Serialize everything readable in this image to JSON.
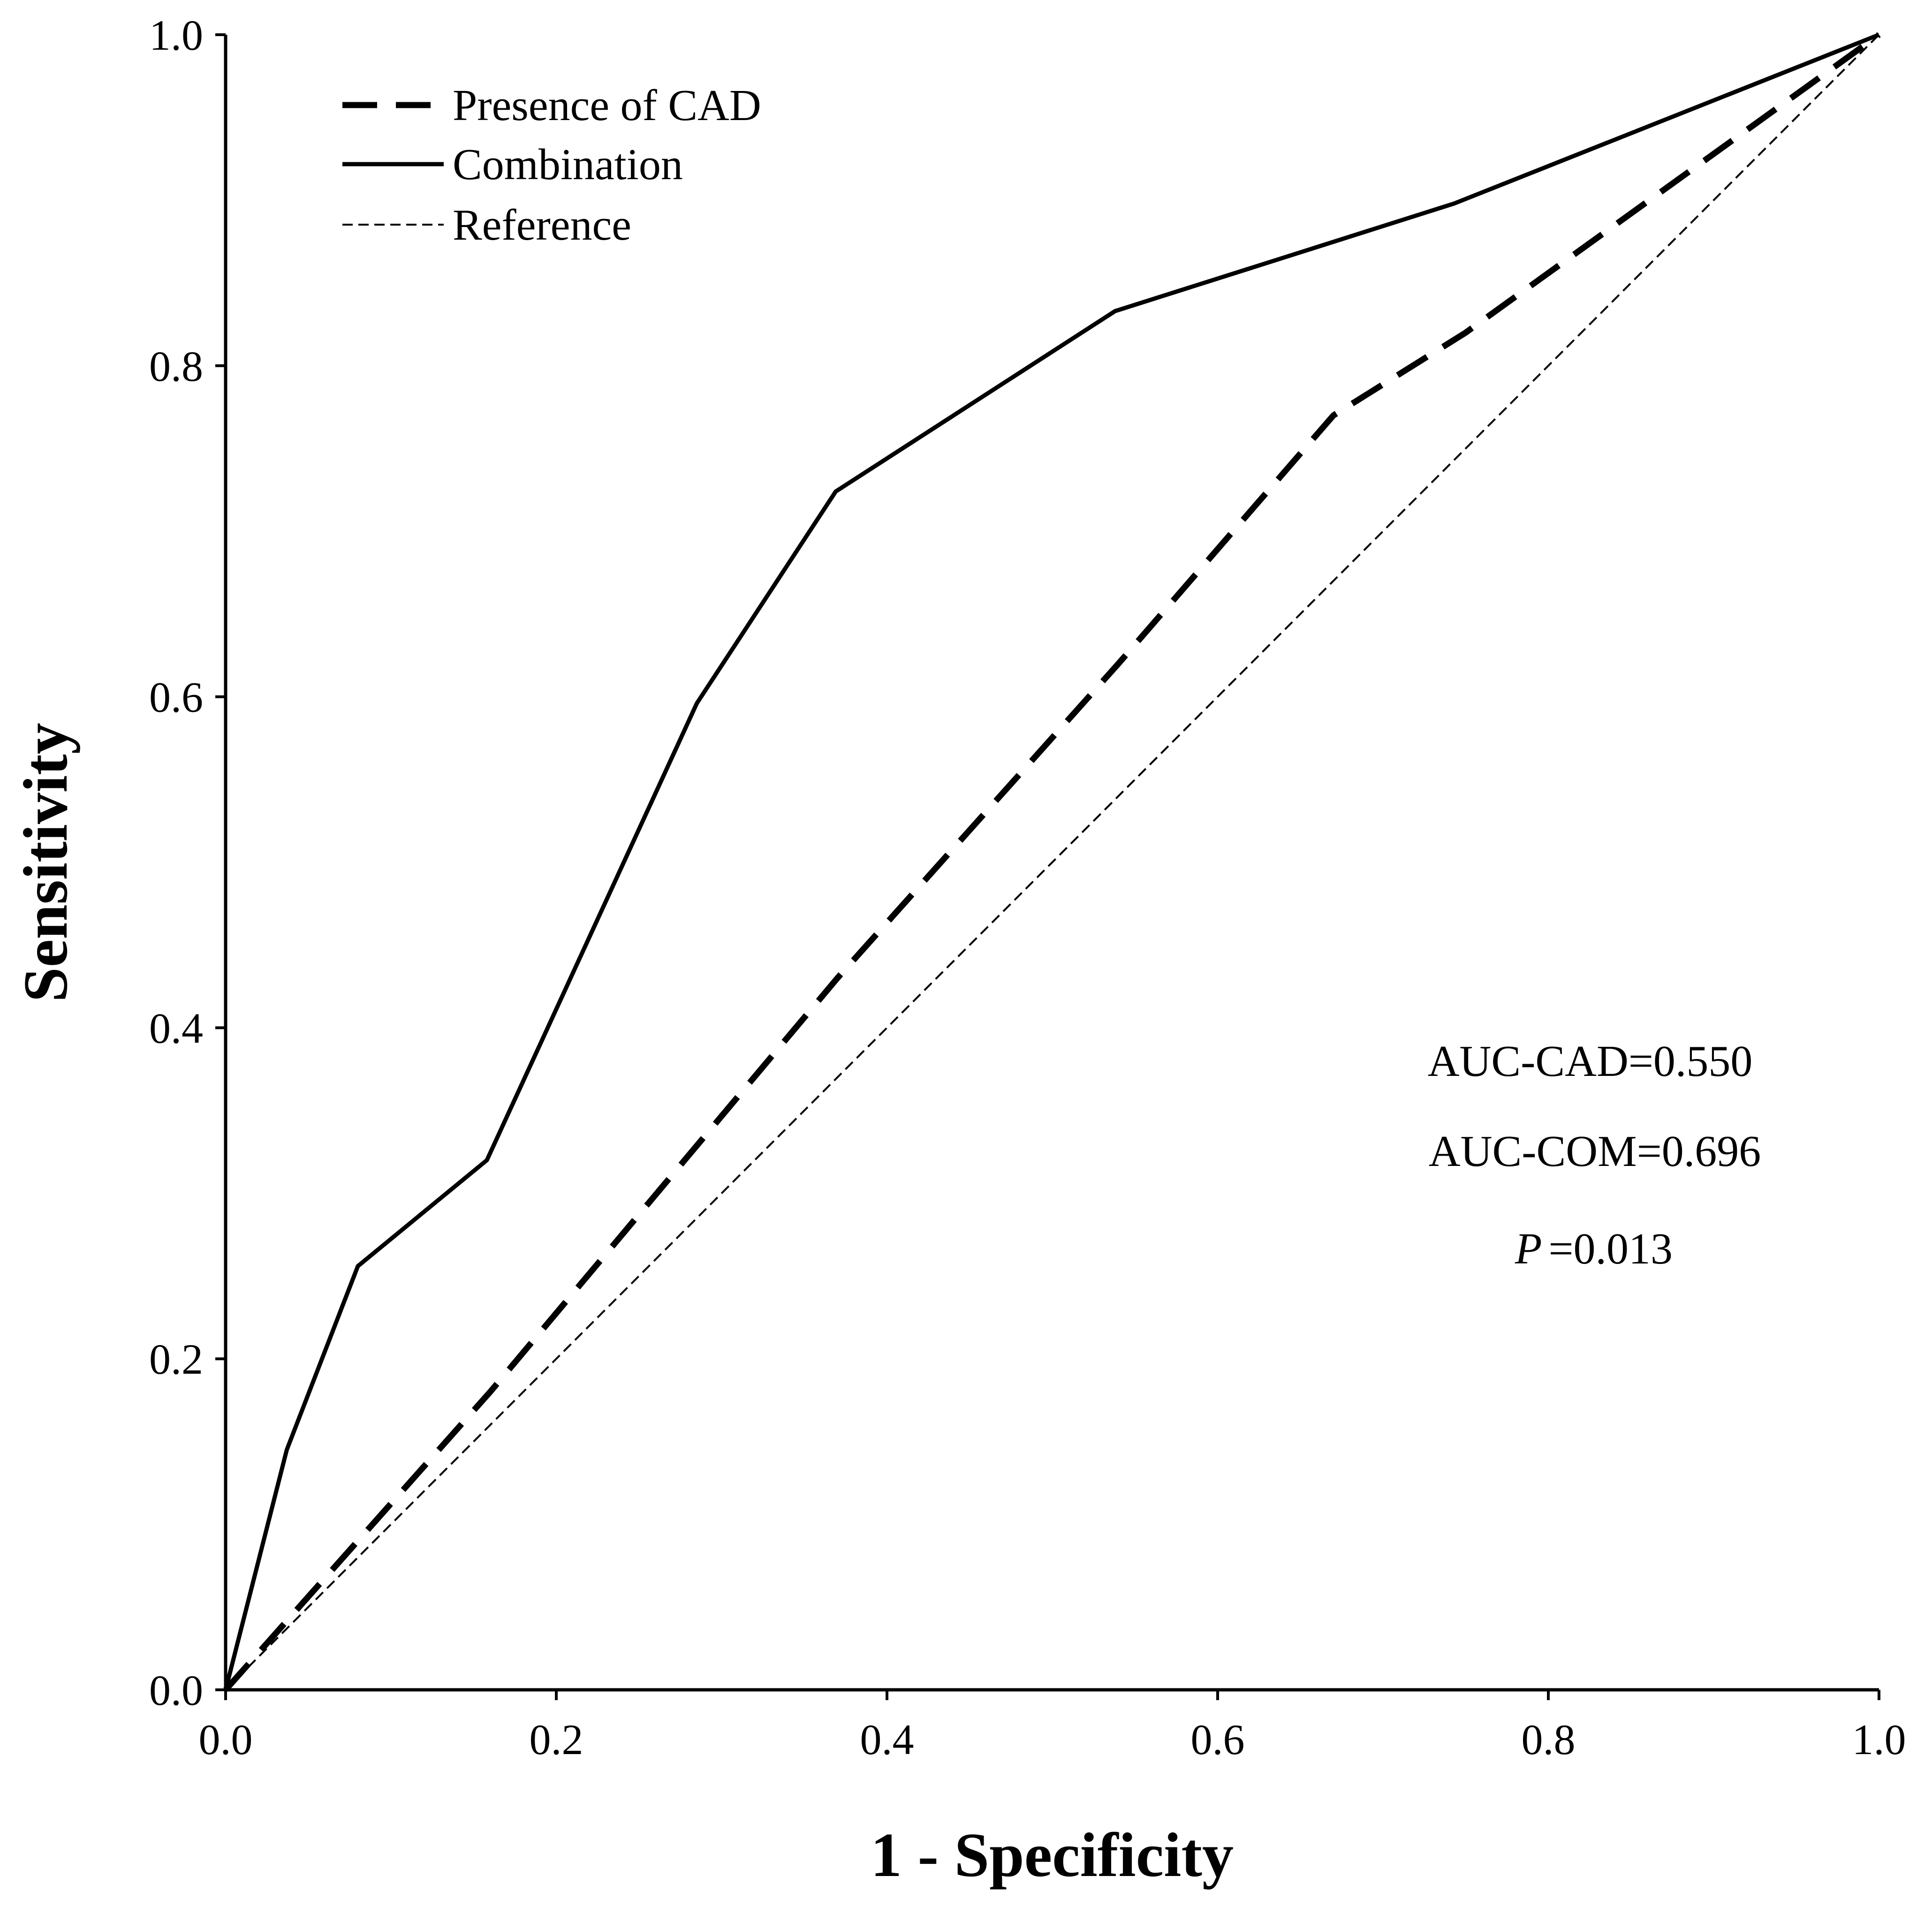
{
  "chart_data": {
    "type": "line",
    "xlabel": "1 - Specificity",
    "ylabel": "Sensitivity",
    "xlim": [
      0,
      1
    ],
    "ylim": [
      0,
      1
    ],
    "xticks": [
      0,
      0.2,
      0.4,
      0.6,
      0.8,
      1.0
    ],
    "xtick_labels": [
      "0.0",
      "0.2",
      "0.4",
      "0.6",
      "0.8",
      "1.0"
    ],
    "yticks": [
      0,
      0.2,
      0.4,
      0.6,
      0.8,
      1.0
    ],
    "ytick_labels": [
      "0.0",
      "0.2",
      "0.4",
      "0.6",
      "0.8",
      "1.0"
    ],
    "grid": false,
    "legend_position": "top-left",
    "series": [
      {
        "name": "Presence of CAD",
        "x": [
          0,
          0.16,
          0.37,
          0.54,
          0.67,
          0.75,
          1.0
        ],
        "y": [
          0,
          0.18,
          0.43,
          0.62,
          0.77,
          0.82,
          1.0
        ]
      },
      {
        "name": "Combination",
        "x": [
          0,
          0.037,
          0.08,
          0.158,
          0.285,
          0.369,
          0.538,
          0.743,
          1.0
        ],
        "y": [
          0,
          0.145,
          0.256,
          0.32,
          0.596,
          0.724,
          0.833,
          0.898,
          1.0
        ]
      },
      {
        "name": "Reference",
        "x": [
          0,
          1.0
        ],
        "y": [
          0,
          1.0
        ]
      }
    ],
    "annotations": {
      "auc_cad": "AUC-CAD=0.550",
      "auc_com": "AUC-COM=0.696",
      "p_symbol": "P",
      "p_value": "=0.013"
    }
  },
  "colors": {
    "line": "#000000",
    "background": "#ffffff"
  }
}
